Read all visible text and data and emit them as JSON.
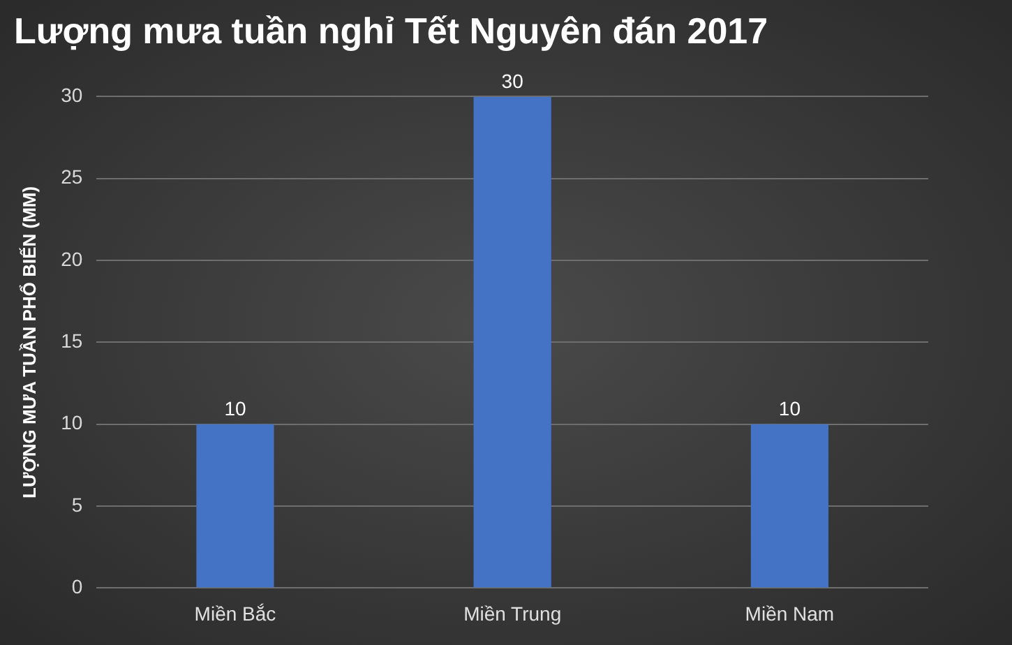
{
  "chart_data": {
    "type": "bar",
    "title": "Lượng mưa tuần nghỉ Tết Nguyên đán 2017",
    "ylabel": "LƯỢNG MƯA TUẦN PHỔ BIẾN (MM)",
    "categories": [
      "Miền Bắc",
      "Miền Trung",
      "Miền Nam"
    ],
    "values": [
      10,
      30,
      10
    ],
    "color": "#4472c4",
    "ylim": [
      0,
      30
    ],
    "yticks": [
      0,
      5,
      10,
      15,
      20,
      25,
      30
    ],
    "grid": "y",
    "data_labels": true,
    "legend": false
  }
}
